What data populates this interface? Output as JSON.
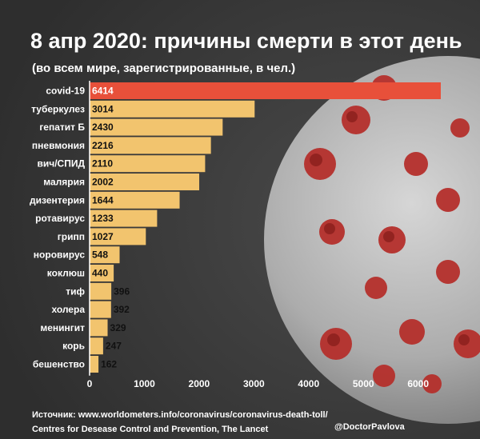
{
  "chart_data": {
    "type": "bar",
    "orientation": "horizontal",
    "title": "8 апр 2020: причины смерти в этот день",
    "subtitle": "(во всем мире, зарегистрированные, в чел.)",
    "categories": [
      "covid-19",
      "туберкулез",
      "гепатит Б",
      "пневмония",
      "вич/СПИД",
      "малярия",
      "дизентерия",
      "ротавирус",
      "грипп",
      "норовирус",
      "коклюш",
      "тиф",
      "холера",
      "менингит",
      "корь",
      "бешенство"
    ],
    "values": [
      6414,
      3014,
      2430,
      2216,
      2110,
      2002,
      1644,
      1233,
      1027,
      548,
      440,
      396,
      392,
      329,
      247,
      162
    ],
    "xlim": [
      0,
      6414
    ],
    "xticks": [
      0,
      1000,
      2000,
      3000,
      4000,
      5000,
      6000
    ],
    "grid": false,
    "colors": {
      "highlight": "#e8503a",
      "bar": "#f2c46e",
      "label_inside": "#ffffff",
      "label_outside": "#111111"
    }
  },
  "footer": {
    "source_line1": "Источник: www.worldometers.info/coronavirus/coronavirus-death-toll/",
    "source_line2": "Centres for Desease Control and Prevention, The Lancet",
    "handle": "@DoctorPavlova"
  },
  "background": {
    "image": "coronavirus-illustration",
    "colors": [
      "#3a3a3a",
      "#b5302c",
      "#d9d9d9"
    ]
  }
}
